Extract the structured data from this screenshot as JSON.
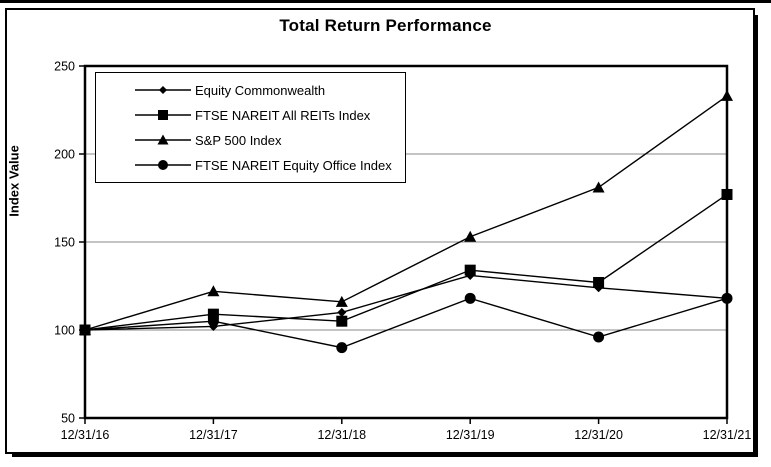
{
  "chart_data": {
    "type": "line",
    "title": "Total Return Performance",
    "xlabel": "",
    "ylabel": "Index Value",
    "categories": [
      "12/31/16",
      "12/31/17",
      "12/31/18",
      "12/31/19",
      "12/31/20",
      "12/31/21"
    ],
    "ylim": [
      50,
      250
    ],
    "yticks": [
      50,
      100,
      150,
      200,
      250
    ],
    "grid": true,
    "gridline_values": [
      100,
      150,
      200
    ],
    "legend_position": "top-left-inside",
    "colors": {
      "series": "#000000",
      "gridline": "#888888",
      "plot_border": "#000000",
      "background": "#ffffff"
    },
    "series": [
      {
        "name": "Equity Commonwealth",
        "marker": "diamond",
        "values": [
          100,
          102,
          110,
          131,
          124,
          118
        ]
      },
      {
        "name": "FTSE NAREIT All REITs Index",
        "marker": "square",
        "values": [
          100,
          109,
          105,
          134,
          127,
          177
        ]
      },
      {
        "name": "S&P 500 Index",
        "marker": "triangle",
        "values": [
          100,
          122,
          116,
          153,
          181,
          233
        ]
      },
      {
        "name": "FTSE NAREIT Equity Office Index",
        "marker": "circle",
        "values": [
          100,
          105,
          90,
          118,
          96,
          118
        ]
      }
    ]
  }
}
